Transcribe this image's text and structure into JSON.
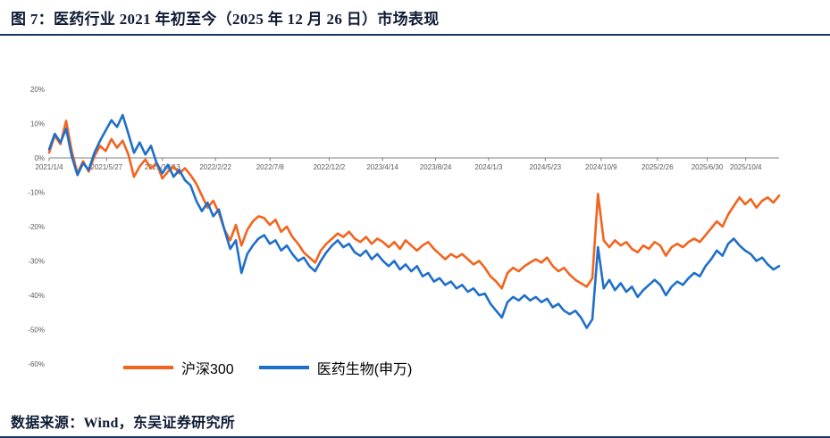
{
  "header": {
    "title": "图 7：医药行业 2021 年初至今（2025 年 12 月 26 日）市场表现"
  },
  "footer": {
    "source": "数据来源：Wind，东吴证券研究所"
  },
  "chart_data": {
    "type": "line",
    "title": "医药行业2021年初至今（2025年12月26日）市场表现",
    "xlabel": "",
    "ylabel": "",
    "grid": false,
    "legend_position": "bottom",
    "x_start": "2021/1/4",
    "x_end": "2025/12/26",
    "x_tick_labels": [
      "2021/1/4",
      "2021/5/27",
      "2021/10/13",
      "2022/2/22",
      "2022/7/8",
      "2022/12/2",
      "2023/4/14",
      "2023/8/24",
      "2024/1/3",
      "2024/5/23",
      "2024/10/9",
      "2025/2/26",
      "2025/6/30",
      "2025/10/4"
    ],
    "ylim": [
      -60,
      20
    ],
    "y_ticks": [
      {
        "value": 20,
        "label": "20%"
      },
      {
        "value": 10,
        "label": "10%"
      },
      {
        "value": 0,
        "label": "0%"
      },
      {
        "value": -10,
        "label": "-10%"
      },
      {
        "value": -20,
        "label": "-20%"
      },
      {
        "value": -30,
        "label": "-30%"
      },
      {
        "value": -40,
        "label": "-40%"
      },
      {
        "value": -50,
        "label": "-50%"
      },
      {
        "value": -60,
        "label": "-60%"
      }
    ],
    "axis_color": "#7f7f7f",
    "series": [
      {
        "name": "沪深300",
        "color": "#F2641E",
        "values": [
          1.5,
          6.5,
          4.0,
          10.8,
          2.0,
          -4.5,
          -1.0,
          -4.0,
          0.5,
          3.5,
          2.0,
          5.5,
          3.0,
          5.0,
          1.0,
          -5.5,
          -2.5,
          -0.5,
          -3.0,
          -1.5,
          -6.0,
          -4.0,
          -2.5,
          -4.5,
          -3.0,
          -5.0,
          -7.5,
          -11.0,
          -14.5,
          -12.5,
          -16.0,
          -21.0,
          -24.0,
          -19.5,
          -25.5,
          -21.0,
          -18.5,
          -17.0,
          -17.5,
          -19.5,
          -18.0,
          -21.5,
          -20.0,
          -23.0,
          -25.0,
          -27.5,
          -29.0,
          -30.5,
          -27.0,
          -25.0,
          -23.5,
          -22.0,
          -23.0,
          -21.5,
          -23.5,
          -24.5,
          -23.0,
          -25.0,
          -23.5,
          -24.5,
          -26.0,
          -24.5,
          -26.5,
          -24.0,
          -25.5,
          -27.0,
          -25.5,
          -24.5,
          -26.5,
          -28.0,
          -29.5,
          -28.0,
          -29.0,
          -28.0,
          -29.5,
          -31.0,
          -30.0,
          -32.0,
          -34.5,
          -36.0,
          -38.0,
          -33.5,
          -32.0,
          -33.0,
          -31.5,
          -30.5,
          -29.5,
          -30.5,
          -29.0,
          -31.5,
          -33.0,
          -32.0,
          -34.0,
          -35.5,
          -36.5,
          -37.5,
          -35.0,
          -10.5,
          -24.0,
          -26.0,
          -24.0,
          -25.5,
          -24.5,
          -26.5,
          -27.5,
          -25.5,
          -26.5,
          -24.5,
          -25.5,
          -28.5,
          -26.0,
          -25.0,
          -26.0,
          -24.5,
          -23.5,
          -24.5,
          -22.5,
          -20.5,
          -18.5,
          -20.0,
          -16.5,
          -14.0,
          -11.5,
          -13.5,
          -12.0,
          -14.5,
          -12.5,
          -11.5,
          -13.0,
          -11.0
        ]
      },
      {
        "name": "医药生物(申万)",
        "color": "#1F6FC9",
        "values": [
          2.5,
          7.0,
          4.5,
          8.5,
          0.5,
          -5.0,
          -1.5,
          -3.5,
          1.5,
          5.0,
          8.0,
          11.0,
          9.0,
          12.5,
          7.0,
          1.5,
          4.5,
          1.0,
          3.5,
          -1.5,
          -4.5,
          -2.0,
          -5.5,
          -3.5,
          -6.5,
          -8.0,
          -12.5,
          -15.5,
          -13.0,
          -17.0,
          -15.0,
          -21.0,
          -26.5,
          -24.0,
          -33.5,
          -28.0,
          -25.5,
          -23.5,
          -22.5,
          -25.0,
          -24.0,
          -27.0,
          -25.5,
          -28.0,
          -30.0,
          -29.0,
          -31.5,
          -33.0,
          -30.0,
          -27.5,
          -25.5,
          -24.0,
          -26.0,
          -25.0,
          -27.5,
          -28.5,
          -27.0,
          -29.5,
          -28.0,
          -30.0,
          -31.5,
          -30.0,
          -32.5,
          -31.0,
          -33.0,
          -31.5,
          -34.5,
          -33.5,
          -36.0,
          -35.0,
          -37.0,
          -36.0,
          -38.0,
          -37.0,
          -39.0,
          -38.0,
          -40.0,
          -39.5,
          -42.5,
          -44.5,
          -46.5,
          -42.0,
          -40.5,
          -41.5,
          -40.0,
          -41.5,
          -40.5,
          -42.0,
          -41.0,
          -43.5,
          -42.5,
          -44.5,
          -45.5,
          -44.5,
          -46.5,
          -49.5,
          -47.0,
          -26.0,
          -38.0,
          -35.5,
          -38.5,
          -36.5,
          -39.0,
          -37.5,
          -40.5,
          -38.5,
          -37.0,
          -35.5,
          -37.0,
          -40.0,
          -37.5,
          -36.0,
          -37.0,
          -35.0,
          -33.5,
          -34.5,
          -31.5,
          -29.5,
          -27.0,
          -28.5,
          -25.0,
          -23.5,
          -25.5,
          -27.0,
          -28.0,
          -30.0,
          -29.0,
          -31.0,
          -32.5,
          -31.5
        ]
      }
    ]
  }
}
